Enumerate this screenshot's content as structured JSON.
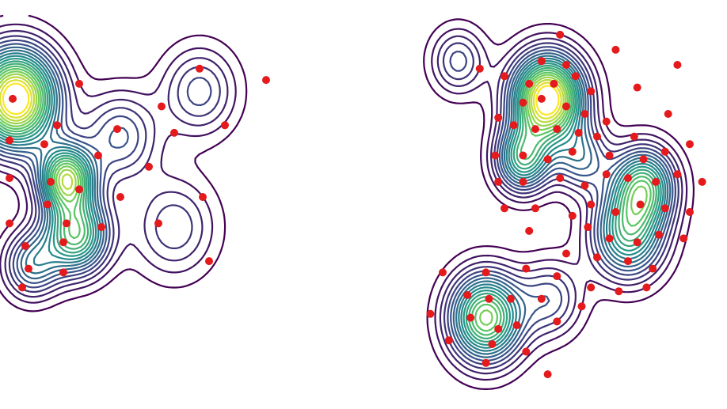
{
  "chart_data": [
    {
      "type": "contour",
      "title": "",
      "xlabel": "",
      "ylabel": "",
      "colormap": "viridis",
      "point_color": "#e41a1c",
      "num_levels": 20,
      "blobs": [
        {
          "x": 0.05,
          "y": 0.78,
          "s": 0.09,
          "w": 1.0
        },
        {
          "x": 0.21,
          "y": 0.57,
          "s": 0.06,
          "w": 0.75
        },
        {
          "x": 0.24,
          "y": 0.42,
          "s": 0.07,
          "w": 0.65
        },
        {
          "x": 0.1,
          "y": 0.34,
          "s": 0.06,
          "w": 0.35
        },
        {
          "x": 0.63,
          "y": 0.8,
          "s": 0.08,
          "w": 0.25
        },
        {
          "x": 0.55,
          "y": 0.44,
          "s": 0.09,
          "w": 0.22
        },
        {
          "x": 0.38,
          "y": 0.68,
          "s": 0.08,
          "w": 0.28
        }
      ],
      "points": [
        [
          0.25,
          0.82
        ],
        [
          0.63,
          0.86
        ],
        [
          0.84,
          0.83
        ],
        [
          0.51,
          0.76
        ],
        [
          0.71,
          0.71
        ],
        [
          0.04,
          0.78
        ],
        [
          0.18,
          0.71
        ],
        [
          0.37,
          0.7
        ],
        [
          0.55,
          0.69
        ],
        [
          0.03,
          0.67
        ],
        [
          0.14,
          0.66
        ],
        [
          0.31,
          0.63
        ],
        [
          0.47,
          0.6
        ],
        [
          0.03,
          0.57
        ],
        [
          0.16,
          0.56
        ],
        [
          0.25,
          0.54
        ],
        [
          0.38,
          0.52
        ],
        [
          0.64,
          0.52
        ],
        [
          0.15,
          0.5
        ],
        [
          0.03,
          0.45
        ],
        [
          0.21,
          0.45
        ],
        [
          0.32,
          0.44
        ],
        [
          0.5,
          0.45
        ],
        [
          0.08,
          0.39
        ],
        [
          0.2,
          0.4
        ],
        [
          0.66,
          0.35
        ],
        [
          0.09,
          0.33
        ],
        [
          0.2,
          0.32
        ],
        [
          0.07,
          0.28
        ]
      ]
    },
    {
      "type": "contour",
      "title": "",
      "xlabel": "",
      "ylabel": "",
      "colormap": "viridis",
      "point_color": "#e41a1c",
      "num_levels": 20,
      "blobs": [
        {
          "x": 0.44,
          "y": 0.78,
          "s": 0.08,
          "w": 1.0
        },
        {
          "x": 0.36,
          "y": 0.62,
          "s": 0.06,
          "w": 0.55
        },
        {
          "x": 0.75,
          "y": 0.55,
          "s": 0.07,
          "w": 0.6
        },
        {
          "x": 0.7,
          "y": 0.42,
          "s": 0.08,
          "w": 0.55
        },
        {
          "x": 0.24,
          "y": 0.2,
          "s": 0.08,
          "w": 0.75
        },
        {
          "x": 0.55,
          "y": 0.62,
          "s": 0.06,
          "w": 0.3
        },
        {
          "x": 0.45,
          "y": 0.25,
          "s": 0.07,
          "w": 0.25
        },
        {
          "x": 0.15,
          "y": 0.88,
          "s": 0.06,
          "w": 0.25
        }
      ],
      "points": [
        [
          0.48,
          0.95
        ],
        [
          0.66,
          0.91
        ],
        [
          0.86,
          0.87
        ],
        [
          0.22,
          0.86
        ],
        [
          0.42,
          0.88
        ],
        [
          0.5,
          0.87
        ],
        [
          0.3,
          0.84
        ],
        [
          0.38,
          0.82
        ],
        [
          0.46,
          0.82
        ],
        [
          0.53,
          0.84
        ],
        [
          0.58,
          0.8
        ],
        [
          0.73,
          0.81
        ],
        [
          0.36,
          0.77
        ],
        [
          0.42,
          0.78
        ],
        [
          0.5,
          0.76
        ],
        [
          0.56,
          0.74
        ],
        [
          0.63,
          0.72
        ],
        [
          0.28,
          0.73
        ],
        [
          0.33,
          0.71
        ],
        [
          0.4,
          0.7
        ],
        [
          0.47,
          0.7
        ],
        [
          0.54,
          0.69
        ],
        [
          0.6,
          0.68
        ],
        [
          0.72,
          0.68
        ],
        [
          0.83,
          0.74
        ],
        [
          0.27,
          0.63
        ],
        [
          0.36,
          0.63
        ],
        [
          0.44,
          0.62
        ],
        [
          0.52,
          0.64
        ],
        [
          0.64,
          0.63
        ],
        [
          0.75,
          0.62
        ],
        [
          0.82,
          0.64
        ],
        [
          0.9,
          0.66
        ],
        [
          0.28,
          0.56
        ],
        [
          0.36,
          0.56
        ],
        [
          0.48,
          0.57
        ],
        [
          0.56,
          0.55
        ],
        [
          0.63,
          0.58
        ],
        [
          0.7,
          0.57
        ],
        [
          0.79,
          0.56
        ],
        [
          0.86,
          0.58
        ],
        [
          0.94,
          0.56
        ],
        [
          0.3,
          0.49
        ],
        [
          0.4,
          0.49
        ],
        [
          0.52,
          0.47
        ],
        [
          0.58,
          0.5
        ],
        [
          0.66,
          0.48
        ],
        [
          0.74,
          0.5
        ],
        [
          0.82,
          0.49
        ],
        [
          0.9,
          0.48
        ],
        [
          0.38,
          0.43
        ],
        [
          0.57,
          0.44
        ],
        [
          0.64,
          0.41
        ],
        [
          0.73,
          0.4
        ],
        [
          0.8,
          0.42
        ],
        [
          0.88,
          0.41
        ],
        [
          0.5,
          0.37
        ],
        [
          0.6,
          0.36
        ],
        [
          0.7,
          0.35
        ],
        [
          0.78,
          0.33
        ],
        [
          0.1,
          0.32
        ],
        [
          0.24,
          0.32
        ],
        [
          0.37,
          0.33
        ],
        [
          0.47,
          0.31
        ],
        [
          0.58,
          0.28
        ],
        [
          0.67,
          0.27
        ],
        [
          0.76,
          0.28
        ],
        [
          0.18,
          0.26
        ],
        [
          0.25,
          0.25
        ],
        [
          0.32,
          0.25
        ],
        [
          0.42,
          0.25
        ],
        [
          0.55,
          0.23
        ],
        [
          0.06,
          0.21
        ],
        [
          0.19,
          0.2
        ],
        [
          0.28,
          0.17
        ],
        [
          0.34,
          0.18
        ],
        [
          0.47,
          0.19
        ],
        [
          0.12,
          0.14
        ],
        [
          0.26,
          0.13
        ],
        [
          0.37,
          0.11
        ],
        [
          0.24,
          0.08
        ],
        [
          0.44,
          0.05
        ]
      ]
    }
  ]
}
